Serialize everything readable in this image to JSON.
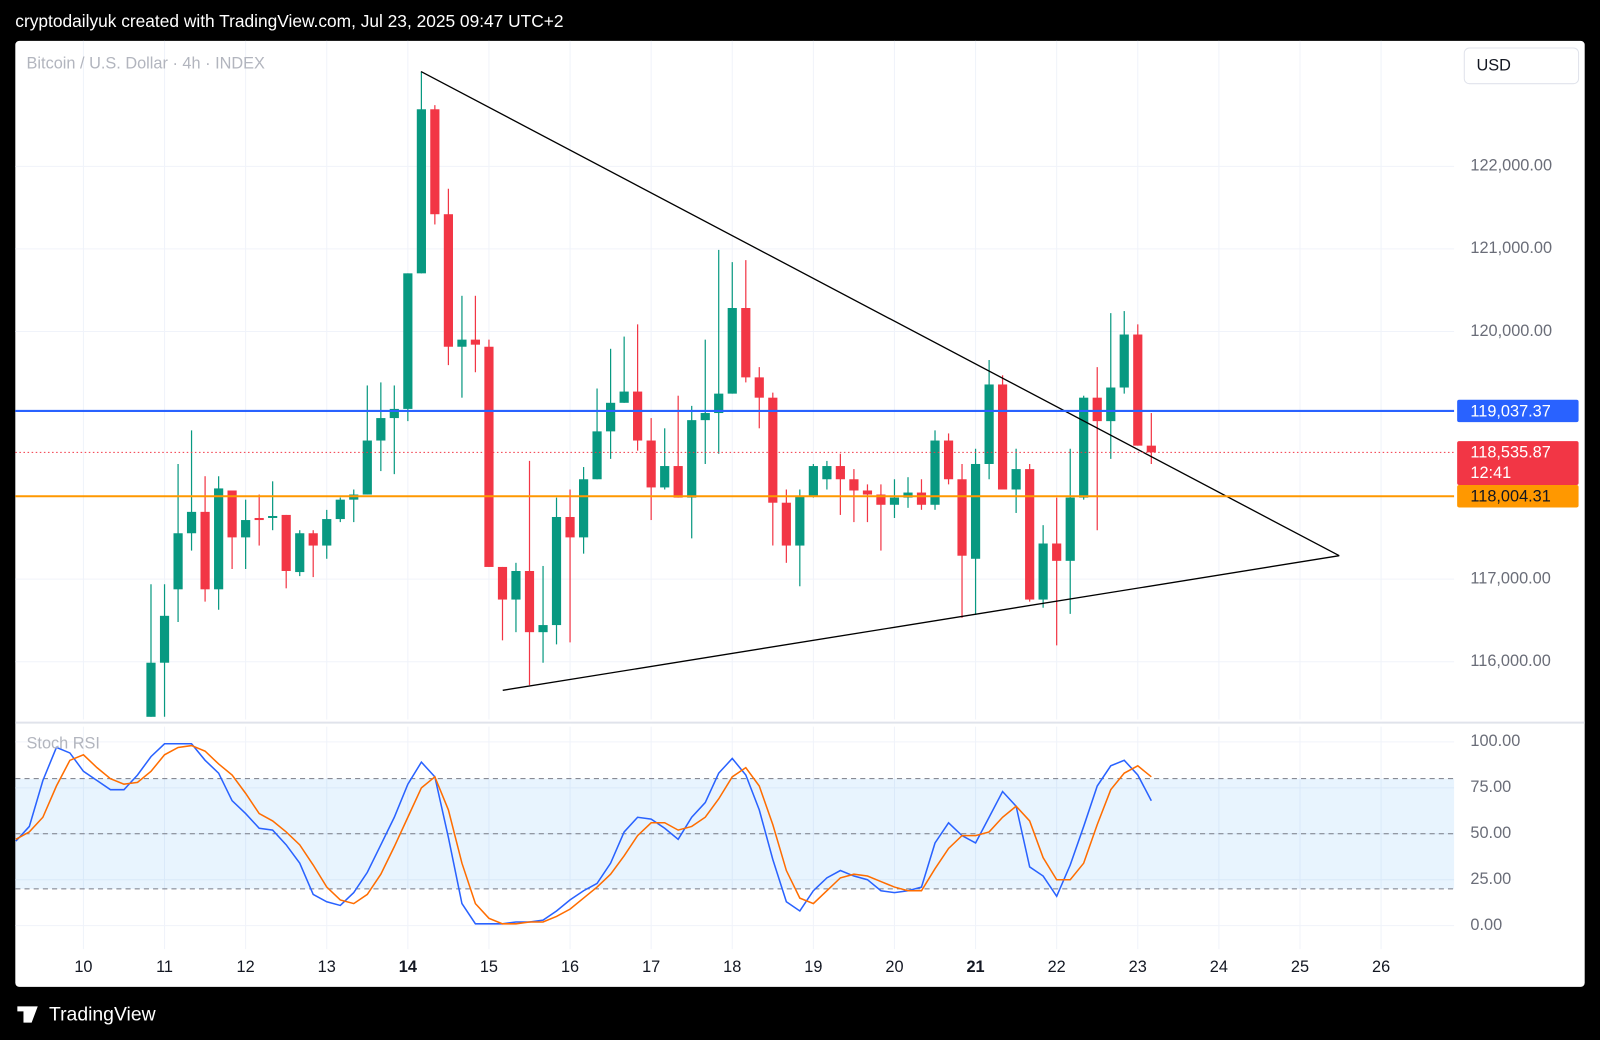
{
  "header": "cryptodailyuk created with TradingView.com, Jul 23, 2025 09:47 UTC+2",
  "currency_button": "USD",
  "footer": "TradingView",
  "chart_data": [
    {
      "type": "candlestick",
      "title": "Bitcoin / U.S. Dollar · 4h · INDEX",
      "up_color": "#089981",
      "down_color": "#f23645",
      "x": [
        10.833,
        11,
        11.167,
        11.333,
        11.5,
        11.667,
        11.833,
        12,
        12.167,
        12.333,
        12.5,
        12.667,
        12.833,
        13,
        13.167,
        13.333,
        13.5,
        13.667,
        13.833,
        14,
        14.167,
        14.333,
        14.5,
        14.667,
        14.833,
        15,
        15.167,
        15.333,
        15.5,
        15.667,
        15.833,
        16,
        16.167,
        16.333,
        16.5,
        16.667,
        16.833,
        17,
        17.167,
        17.333,
        17.5,
        17.667,
        17.833,
        18,
        18.167,
        18.333,
        18.5,
        18.667,
        18.833,
        19,
        19.167,
        19.333,
        19.5,
        19.667,
        19.833,
        20,
        20.167,
        20.333,
        20.5,
        20.667,
        20.833,
        21,
        21.167,
        21.333,
        21.5,
        21.667,
        21.833,
        22,
        22.167,
        22.333,
        22.5,
        22.667,
        22.833,
        23,
        23.167
      ],
      "open": [
        115333,
        115988,
        116877,
        117556,
        117815,
        116877,
        118074,
        117506,
        117741,
        117741,
        117778,
        117086,
        117556,
        117407,
        117728,
        117963,
        118025,
        118679,
        118951,
        119062,
        120704,
        122691,
        121420,
        119815,
        119901,
        119815,
        117148,
        116753,
        117099,
        116358,
        116444,
        117753,
        117506,
        118210,
        118790,
        119136,
        119272,
        118679,
        118111,
        118370,
        117988,
        118926,
        119012,
        119247,
        120284,
        119444,
        119198,
        117926,
        117407,
        118012,
        118210,
        118370,
        118210,
        118074,
        118025,
        117901,
        117988,
        118049,
        117901,
        118679,
        118210,
        117247,
        118395,
        119358,
        118086,
        118333,
        116753,
        117432,
        117222,
        117988,
        119198,
        118914,
        119321,
        119963,
        118617
      ],
      "high": [
        116938,
        116938,
        118395,
        118802,
        118247,
        118247,
        118074,
        117963,
        118025,
        118185,
        117778,
        117593,
        117593,
        117839,
        117988,
        118086,
        119346,
        119383,
        119346,
        120704,
        123148,
        122741,
        121728,
        120432,
        120432,
        119901,
        117148,
        117198,
        118432,
        117160,
        117988,
        118086,
        118358,
        119309,
        119790,
        119938,
        120086,
        118951,
        118827,
        119222,
        119099,
        119901,
        120988,
        120840,
        120864,
        119568,
        119259,
        118086,
        118086,
        118395,
        118432,
        118519,
        118333,
        118148,
        118148,
        118210,
        118235,
        118210,
        118802,
        118765,
        118395,
        118580,
        119654,
        119469,
        118580,
        118395,
        117654,
        117988,
        118580,
        119222,
        119568,
        120222,
        120247,
        120086,
        119012
      ],
      "low": [
        115333,
        115333,
        116481,
        117346,
        116728,
        116630,
        117123,
        117123,
        117407,
        117593,
        116889,
        117037,
        117025,
        117247,
        117691,
        117691,
        118025,
        118309,
        118272,
        118914,
        120704,
        121296,
        119593,
        119198,
        119506,
        117148,
        116259,
        116358,
        115716,
        115988,
        116210,
        116235,
        117309,
        118210,
        118457,
        119136,
        118556,
        117716,
        118086,
        117988,
        117494,
        118395,
        118519,
        119247,
        119383,
        118827,
        117407,
        117198,
        116914,
        117988,
        118086,
        117778,
        117691,
        117691,
        117346,
        117741,
        117864,
        117840,
        117840,
        118148,
        116531,
        116568,
        118210,
        118086,
        117802,
        116728,
        116654,
        116198,
        116580,
        117963,
        117593,
        118457,
        119247,
        118617,
        118395
      ],
      "close": [
        115988,
        116556,
        117556,
        117815,
        116877,
        118099,
        117506,
        117716,
        117716,
        117765,
        117099,
        117556,
        117407,
        117728,
        117963,
        118025,
        118679,
        118951,
        119062,
        120704,
        122691,
        121420,
        119815,
        119901,
        119840,
        117148,
        116753,
        117099,
        116358,
        116444,
        117753,
        117506,
        118210,
        118790,
        119136,
        119272,
        118679,
        118111,
        118370,
        117988,
        118926,
        119012,
        119247,
        120284,
        119444,
        119198,
        117926,
        117407,
        118012,
        118370,
        118370,
        118210,
        118074,
        118025,
        117901,
        117988,
        118049,
        117901,
        118679,
        118210,
        117284,
        118395,
        119358,
        118086,
        118333,
        116753,
        117432,
        117222,
        117988,
        119198,
        118914,
        119321,
        119963,
        118617,
        118535.87
      ],
      "xlim": [
        9.16,
        26.9
      ],
      "xticks": [
        10,
        11,
        12,
        13,
        14,
        15,
        16,
        17,
        18,
        19,
        20,
        21,
        22,
        23,
        24,
        25,
        26
      ],
      "ylim": [
        115300,
        123520
      ],
      "yticks": [
        {
          "value": 116000,
          "label": "116,000.00"
        },
        {
          "value": 117000,
          "label": "117,000.00"
        },
        {
          "value": 120000,
          "label": "120,000.00"
        },
        {
          "value": 121000,
          "label": "121,000.00"
        },
        {
          "value": 122000,
          "label": "122,000.00"
        }
      ],
      "grid": true,
      "hlines": [
        {
          "value": 119037.37,
          "label": "119,037.37",
          "color": "#2962ff",
          "text_color": "#ffffff",
          "style": "solid"
        },
        {
          "value": 118004.31,
          "label": "118,004.31",
          "color": "#ff9800",
          "text_color": "#131722",
          "style": "solid"
        },
        {
          "value": 118535.87,
          "label": "118,535.87",
          "color": "#f23645",
          "text_color": "#ffffff",
          "style": "dotted",
          "countdown": "12:41"
        }
      ],
      "trendlines": [
        {
          "color": "#000000",
          "x": [
            14.163,
            25.484
          ],
          "y": [
            123148,
            117284
          ]
        },
        {
          "color": "#000000",
          "x": [
            15.17,
            25.484
          ],
          "y": [
            115654,
            117284
          ]
        }
      ]
    },
    {
      "type": "line",
      "title": "Stoch RSI",
      "x": [
        9.167,
        9.333,
        9.5,
        9.667,
        9.833,
        10,
        10.167,
        10.333,
        10.5,
        10.667,
        10.833,
        11,
        11.167,
        11.333,
        11.5,
        11.667,
        11.833,
        12,
        12.167,
        12.333,
        12.5,
        12.667,
        12.833,
        13,
        13.167,
        13.333,
        13.5,
        13.667,
        13.833,
        14,
        14.167,
        14.333,
        14.5,
        14.667,
        14.833,
        15,
        15.167,
        15.333,
        15.5,
        15.667,
        15.833,
        16,
        16.167,
        16.333,
        16.5,
        16.667,
        16.833,
        17,
        17.167,
        17.333,
        17.5,
        17.667,
        17.833,
        18,
        18.167,
        18.333,
        18.5,
        18.667,
        18.833,
        19,
        19.167,
        19.333,
        19.5,
        19.667,
        19.833,
        20,
        20.167,
        20.333,
        20.5,
        20.667,
        20.833,
        21,
        21.167,
        21.333,
        21.5,
        21.667,
        21.833,
        22,
        22.167,
        22.333,
        22.5,
        22.667,
        22.833,
        23,
        23.167
      ],
      "series": [
        {
          "color": "#2962ff",
          "values": [
            46,
            54,
            79,
            97,
            94,
            84,
            79,
            74,
            74,
            82,
            92,
            99,
            99,
            99,
            90,
            83,
            68,
            61,
            53,
            52,
            44,
            34,
            17,
            13,
            11,
            18,
            29,
            44,
            59,
            77,
            89,
            81,
            48,
            12,
            1,
            1,
            1,
            2,
            2,
            3,
            8,
            14,
            19,
            23,
            34,
            51,
            59,
            58,
            53,
            47,
            59,
            67,
            83,
            91,
            82,
            63,
            36,
            13,
            8,
            19,
            26,
            30,
            27,
            25,
            19,
            18,
            19,
            21,
            45,
            56,
            49,
            45,
            59,
            73,
            65,
            32,
            27,
            16,
            33,
            54,
            76,
            87,
            90,
            82,
            68
          ]
        },
        {
          "color": "#ff6d00",
          "values": [
            47,
            51,
            59,
            76,
            90,
            93,
            86,
            80,
            77,
            78,
            84,
            93,
            97,
            98,
            95,
            88,
            82,
            72,
            61,
            57,
            51,
            44,
            33,
            21,
            14,
            12,
            17,
            28,
            43,
            59,
            75,
            81,
            63,
            34,
            12,
            4,
            1,
            1,
            2,
            2,
            5,
            9,
            15,
            21,
            28,
            38,
            49,
            56,
            56,
            52,
            54,
            59,
            69,
            81,
            86,
            76,
            55,
            30,
            15,
            12,
            19,
            26,
            28,
            27,
            24,
            21,
            19,
            19,
            31,
            42,
            49,
            49,
            51,
            59,
            65,
            57,
            37,
            25,
            25,
            34,
            55,
            74,
            83,
            87,
            81
          ]
        }
      ],
      "band": [
        20,
        80
      ],
      "levels": [
        80,
        50,
        20
      ],
      "xlim": [
        9.16,
        26.9
      ],
      "xticks": [
        10,
        11,
        12,
        13,
        14,
        15,
        16,
        17,
        18,
        19,
        20,
        21,
        22,
        23,
        24,
        25,
        26
      ],
      "xticks_bold": [
        14,
        21
      ],
      "ylim": [
        -12.8,
        108.3
      ],
      "yticks": [
        {
          "value": 0,
          "label": "0.00"
        },
        {
          "value": 25,
          "label": "25.00"
        },
        {
          "value": 50,
          "label": "50.00"
        },
        {
          "value": 75,
          "label": "75.00"
        },
        {
          "value": 100,
          "label": "100.00"
        }
      ],
      "grid": true
    }
  ]
}
